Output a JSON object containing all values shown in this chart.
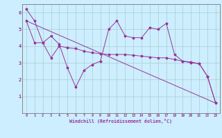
{
  "xlabel": "Windchill (Refroidissement éolien,°C)",
  "bg_color": "#cceeff",
  "line_color": "#993399",
  "grid_color": "#aacccc",
  "xlim": [
    -0.5,
    23.5
  ],
  "ylim": [
    0,
    6.5
  ],
  "x_hours": [
    0,
    1,
    2,
    3,
    4,
    5,
    6,
    7,
    8,
    9,
    10,
    11,
    12,
    13,
    14,
    15,
    16,
    17,
    18,
    19,
    20,
    21,
    22,
    23
  ],
  "line1_y": [
    6.2,
    5.5,
    4.2,
    4.6,
    4.1,
    2.7,
    1.55,
    2.55,
    2.9,
    3.1,
    5.0,
    5.5,
    4.6,
    4.5,
    4.5,
    5.1,
    5.0,
    5.35,
    3.5,
    3.1,
    3.05,
    2.95,
    2.2,
    0.6
  ],
  "line2_y": [
    5.5,
    4.2,
    4.2,
    3.3,
    4.0,
    3.9,
    3.85,
    3.7,
    3.6,
    3.55,
    3.5,
    3.5,
    3.5,
    3.45,
    3.4,
    3.35,
    3.3,
    3.3,
    3.2,
    3.1,
    3.0,
    2.95,
    2.2,
    0.6
  ],
  "trend_x": [
    0,
    23
  ],
  "trend_y": [
    5.5,
    0.6
  ]
}
